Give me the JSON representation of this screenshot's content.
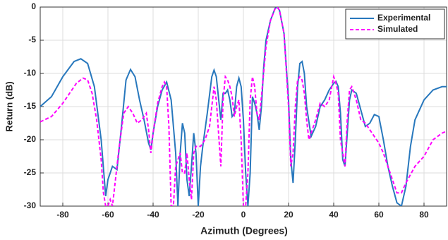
{
  "chart_data": {
    "type": "line",
    "xlabel": "Azimuth (Degrees)",
    "ylabel": "Return (dB)",
    "xlim": [
      -90,
      90
    ],
    "xticks": [
      -80,
      -60,
      -40,
      -20,
      0,
      20,
      40,
      60,
      80
    ],
    "ylim": [
      -30,
      0
    ],
    "yticks": [
      -30,
      -25,
      -20,
      -15,
      -10,
      -5,
      0
    ],
    "grid": true,
    "legend": "upper-right",
    "series": [
      {
        "name": "Experimental",
        "color": "#2878bd",
        "linestyle": "solid",
        "x": [
          -90,
          -85,
          -80,
          -75,
          -72,
          -69,
          -66,
          -63,
          -61,
          -60,
          -58,
          -56,
          -54,
          -52,
          -50,
          -48,
          -46,
          -44,
          -42,
          -41,
          -40,
          -38,
          -36,
          -34,
          -32,
          -30,
          -29,
          -28,
          -27,
          -26,
          -25,
          -24,
          -23,
          -22,
          -21,
          -20,
          -19,
          -18,
          -16,
          -14,
          -13,
          -12,
          -10,
          -9,
          -8,
          -7,
          -6,
          -5,
          -4,
          -3,
          -2,
          -1,
          0,
          1,
          2,
          3,
          4,
          5,
          6,
          7,
          8,
          9,
          10,
          12,
          14,
          15,
          16,
          18,
          20,
          21,
          22,
          23,
          24,
          25,
          26,
          27,
          28,
          30,
          32,
          34,
          36,
          38,
          40,
          41,
          42,
          43,
          44,
          45,
          46,
          47,
          48,
          50,
          52,
          54,
          56,
          58,
          60,
          62,
          64,
          66,
          68,
          70,
          72,
          74,
          76,
          80,
          84,
          88,
          90
        ],
        "values": [
          -15,
          -13.5,
          -10.5,
          -8.2,
          -7.8,
          -8.5,
          -12,
          -20,
          -28.5,
          -26,
          -24,
          -24.5,
          -18,
          -11,
          -9.4,
          -10.5,
          -14,
          -17,
          -20.5,
          -21.5,
          -19,
          -15,
          -12.5,
          -11.3,
          -14,
          -22,
          -30,
          -22,
          -17.5,
          -19,
          -26,
          -28.5,
          -24,
          -19,
          -22,
          -30,
          -24,
          -21,
          -16,
          -10.5,
          -9.5,
          -10.5,
          -17,
          -13,
          -13,
          -12.5,
          -14,
          -16.5,
          -16,
          -12,
          -10.7,
          -12,
          -17,
          -25,
          -30,
          -25,
          -13.5,
          -14.5,
          -16,
          -18.5,
          -15,
          -9,
          -5,
          -2,
          -0.2,
          0,
          -0.5,
          -4,
          -14,
          -23,
          -26.5,
          -20,
          -12,
          -8.5,
          -8.2,
          -10,
          -15,
          -19.5,
          -18,
          -15,
          -14,
          -12.5,
          -11.5,
          -11.2,
          -12,
          -16,
          -23,
          -24,
          -19,
          -14,
          -12.5,
          -13,
          -15.5,
          -18,
          -17.5,
          -16.2,
          -16.5,
          -20,
          -24,
          -27,
          -29.5,
          -30,
          -27,
          -21,
          -17,
          -14,
          -12.5,
          -12,
          -12
        ]
      },
      {
        "name": "Simulated",
        "color": "#ff00ff",
        "linestyle": "dashed",
        "x": [
          -90,
          -85,
          -80,
          -77,
          -74,
          -71,
          -69,
          -67,
          -65,
          -63,
          -62,
          -61,
          -60,
          -59,
          -58,
          -57,
          -55,
          -53,
          -51,
          -49,
          -47,
          -45,
          -43,
          -42,
          -41,
          -40,
          -38,
          -36,
          -35,
          -34,
          -33,
          -32,
          -31,
          -30,
          -28,
          -27,
          -26,
          -25,
          -24,
          -23,
          -22,
          -21,
          -19,
          -17,
          -15,
          -14,
          -13,
          -12,
          -11,
          -10,
          -9,
          -8,
          -7,
          -6,
          -5,
          -4,
          -3,
          -2,
          -1,
          0,
          1,
          2,
          3,
          4,
          5,
          6,
          7,
          8,
          10,
          12,
          14,
          15,
          16,
          18,
          20,
          21,
          22,
          23,
          24,
          25,
          26,
          27,
          28,
          29,
          30,
          32,
          34,
          36,
          38,
          40,
          41,
          42,
          43,
          44,
          45,
          46,
          47,
          48,
          50,
          52,
          54,
          56,
          58,
          60,
          62,
          64,
          66,
          68,
          70,
          72,
          76,
          80,
          84,
          88,
          90
        ],
        "values": [
          -17.3,
          -16.5,
          -14.5,
          -13,
          -11.5,
          -10.7,
          -11,
          -13,
          -17,
          -23,
          -28,
          -30,
          -30,
          -29,
          -30,
          -27,
          -21,
          -16,
          -15,
          -16,
          -17.5,
          -17,
          -16,
          -18.5,
          -22,
          -19,
          -14.5,
          -12,
          -11.3,
          -12,
          -18,
          -30,
          -30,
          -24,
          -22,
          -25,
          -25,
          -22,
          -26,
          -29,
          -22,
          -21,
          -21,
          -20,
          -18,
          -15,
          -12,
          -14,
          -19,
          -24,
          -14,
          -10.5,
          -11,
          -12,
          -13.5,
          -16.5,
          -15,
          -14,
          -20,
          -30,
          -30,
          -25,
          -14,
          -10.5,
          -12,
          -16,
          -17,
          -13.5,
          -6,
          -2,
          -0.3,
          0,
          -0.5,
          -4,
          -15,
          -24,
          -22,
          -15,
          -11,
          -10.5,
          -11,
          -13,
          -17,
          -20,
          -19,
          -17,
          -14.5,
          -15,
          -14,
          -10.5,
          -11.5,
          -13,
          -20,
          -22,
          -24,
          -17,
          -12.5,
          -12,
          -14,
          -17,
          -17.5,
          -18.5,
          -19.5,
          -20.5,
          -22,
          -24,
          -26,
          -28,
          -28,
          -26.5,
          -24,
          -22.5,
          -20,
          -19,
          -18.7
        ]
      }
    ]
  }
}
